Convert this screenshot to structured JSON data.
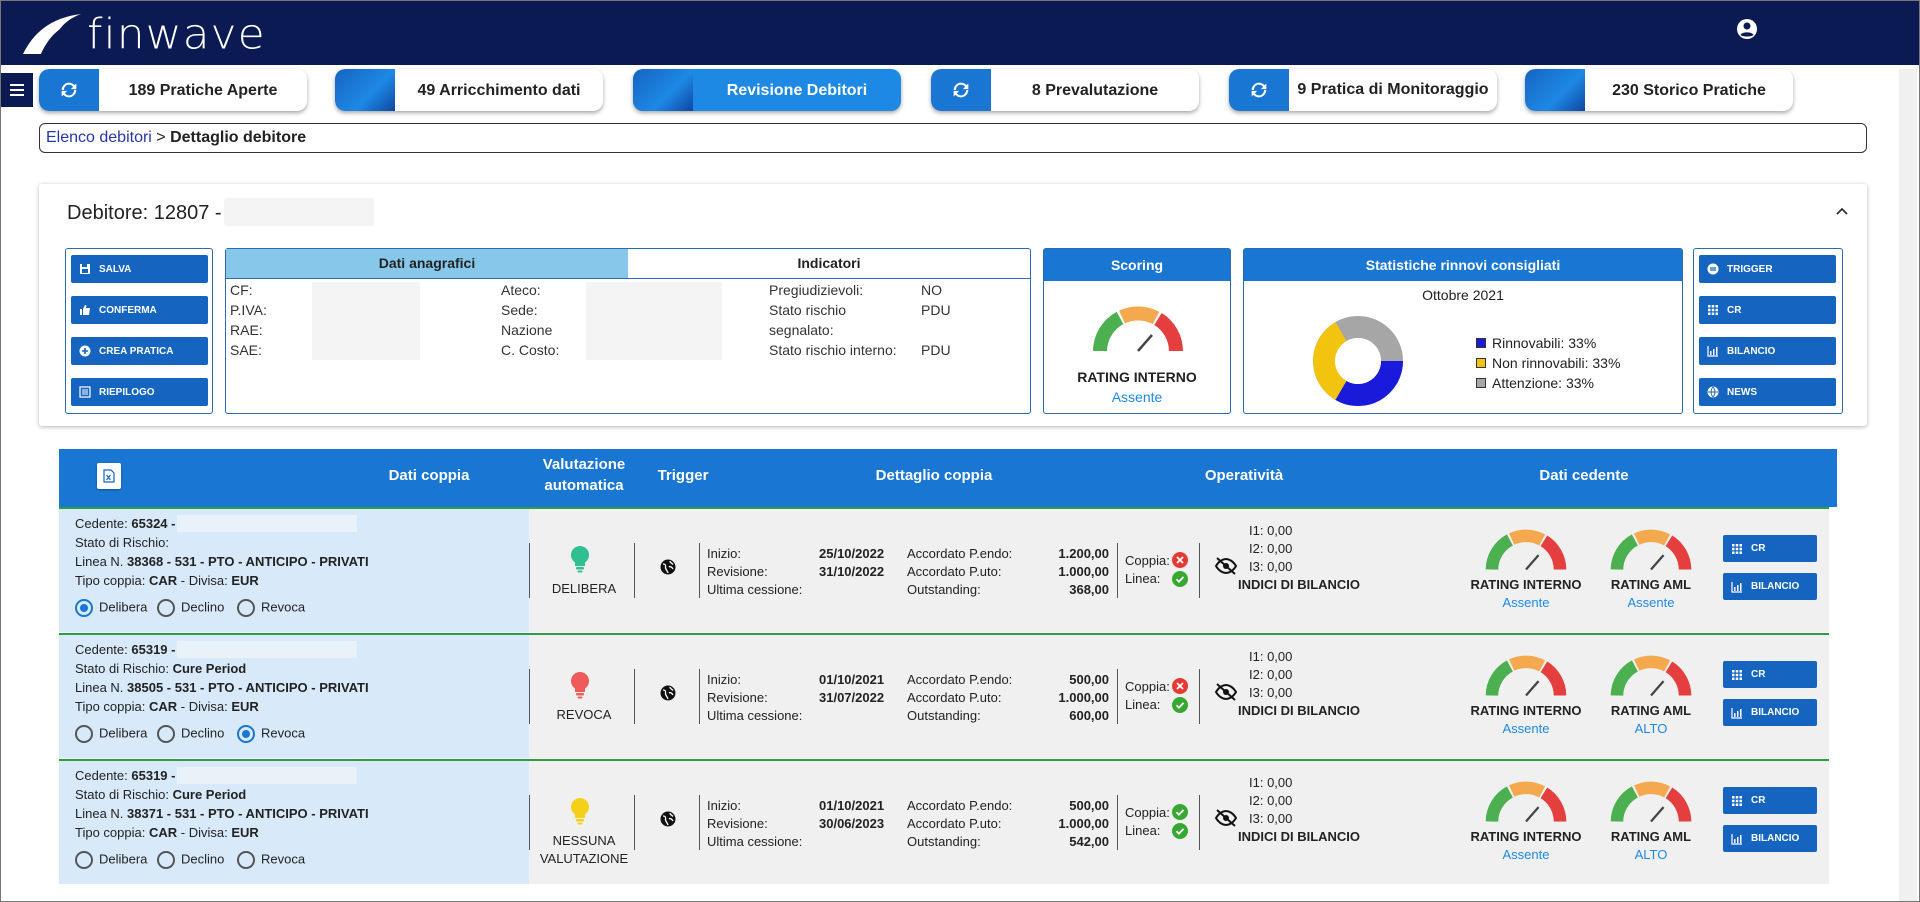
{
  "app": {
    "logo": "finwave"
  },
  "tabs": [
    {
      "label": "189 Pratiche Aperte",
      "icon": "refresh-icon"
    },
    {
      "label": "49 Arricchimento dati",
      "icon": "wave-icon"
    },
    {
      "label": "Revisione Debitori",
      "icon": "wave-icon"
    },
    {
      "label": "8 Prevalutazione",
      "icon": "refresh-icon"
    },
    {
      "label": "9 Pratica di Monitoraggio",
      "icon": "refresh-icon"
    },
    {
      "label": "230 Storico Pratiche",
      "icon": "wave-icon"
    }
  ],
  "breadcrumb": {
    "parent": "Elenco debitori",
    "sep": ">",
    "current": "Dettaglio debitore"
  },
  "debtor": {
    "title": "Debitore: 12807 -"
  },
  "actions": [
    "SALVA",
    "CONFERMA",
    "CREA PRATICA",
    "RIEPILOGO"
  ],
  "anag": {
    "tab1": "Dati anagrafici",
    "tab2": "Indicatori",
    "col1": [
      "CF:",
      "P.IVA:",
      "RAE:",
      "SAE:"
    ],
    "col2": [
      "Ateco:",
      "Sede:",
      "Nazione",
      "C. Costo:"
    ],
    "col3a": "Pregiudizievoli:",
    "col3a_v": "NO",
    "col3b": "Stato rischio",
    "col3b2": "segnalato:",
    "col3b_v": "PDU",
    "col3c": "Stato rischio interno:",
    "col3c_v": "PDU"
  },
  "scoring": {
    "title": "Scoring",
    "label": "RATING INTERNO",
    "value": "Assente"
  },
  "stats": {
    "title": "Statistiche rinnovi consigliati",
    "period": "Ottobre 2021",
    "legend": [
      {
        "label": "Rinnovabili: 33%",
        "color": "#1a1adb"
      },
      {
        "label": "Non rinnovabili: 33%",
        "color": "#f2c40f"
      },
      {
        "label": "Attenzione: 33%",
        "color": "#a6a6a6"
      }
    ]
  },
  "right_buttons": [
    "TRIGGER",
    "CR",
    "BILANCIO",
    "NEWS"
  ],
  "table": {
    "headers": [
      "Dati coppia",
      "Valutazione",
      "automatica",
      "Trigger",
      "Dettaglio coppia",
      "Operatività",
      "Dati cedente"
    ],
    "rows": [
      {
        "cedente_label": "Cedente:",
        "cedente": "65324 -",
        "stato_label": "Stato di Rischio:",
        "stato": "",
        "linea_label": "Linea N.",
        "linea": "38368 - 531 - PTO - ANTICIPO - PRIVATI",
        "tipo_label": "Tipo coppia:",
        "tipo": "CAR",
        "divisa_label": "- Divisa:",
        "divisa": "EUR",
        "radios": [
          "Delibera",
          "Declino",
          "Revoca"
        ],
        "selected": 0,
        "bulb_color": "#2fbf91",
        "valutazione": "DELIBERA",
        "valutazione2": "",
        "inizio_label": "Inizio:",
        "inizio": "25/10/2022",
        "revisione_label": "Revisione:",
        "revisione": "31/10/2022",
        "ultima_label": "Ultima cessione:",
        "ultima": "",
        "pendo_label": "Accordato P.endo:",
        "pendo": "1.200,00",
        "puto_label": "Accordato P.uto:",
        "puto": "1.000,00",
        "out_label": "Outstanding:",
        "out": "368,00",
        "coppia_label": "Coppia:",
        "coppia_ok": false,
        "linea_op_label": "Linea:",
        "linea_ok": true,
        "i1": "I1: 0,00",
        "i2": "I2: 0,00",
        "i3": "I3: 0,00",
        "indici": "INDICI DI BILANCIO",
        "ri_label": "RATING INTERNO",
        "ri_value": "Assente",
        "aml_label": "RATING AML",
        "aml_value": "Assente"
      },
      {
        "cedente_label": "Cedente:",
        "cedente": "65319 -",
        "stato_label": "Stato di Rischio:",
        "stato": "Cure Period",
        "linea_label": "Linea N.",
        "linea": "38505 - 531 - PTO - ANTICIPO - PRIVATI",
        "tipo_label": "Tipo coppia:",
        "tipo": "CAR",
        "divisa_label": "- Divisa:",
        "divisa": "EUR",
        "radios": [
          "Delibera",
          "Declino",
          "Revoca"
        ],
        "selected": 2,
        "bulb_color": "#ef5b5b",
        "valutazione": "REVOCA",
        "valutazione2": "",
        "inizio_label": "Inizio:",
        "inizio": "01/10/2021",
        "revisione_label": "Revisione:",
        "revisione": "31/07/2022",
        "ultima_label": "Ultima cessione:",
        "ultima": "",
        "pendo_label": "Accordato P.endo:",
        "pendo": "500,00",
        "puto_label": "Accordato P.uto:",
        "puto": "1.000,00",
        "out_label": "Outstanding:",
        "out": "600,00",
        "coppia_label": "Coppia:",
        "coppia_ok": false,
        "linea_op_label": "Linea:",
        "linea_ok": true,
        "i1": "I1: 0,00",
        "i2": "I2: 0,00",
        "i3": "I3: 0,00",
        "indici": "INDICI DI BILANCIO",
        "ri_label": "RATING INTERNO",
        "ri_value": "Assente",
        "aml_label": "RATING AML",
        "aml_value": "ALTO"
      },
      {
        "cedente_label": "Cedente:",
        "cedente": "65319 -",
        "stato_label": "Stato di Rischio:",
        "stato": "Cure Period",
        "linea_label": "Linea N.",
        "linea": "38371 - 531 - PTO - ANTICIPO - PRIVATI",
        "tipo_label": "Tipo coppia:",
        "tipo": "CAR",
        "divisa_label": "- Divisa:",
        "divisa": "EUR",
        "radios": [
          "Delibera",
          "Declino",
          "Revoca"
        ],
        "selected": -1,
        "bulb_color": "#f5d018",
        "valutazione": "NESSUNA",
        "valutazione2": "VALUTAZIONE",
        "inizio_label": "Inizio:",
        "inizio": "01/10/2021",
        "revisione_label": "Revisione:",
        "revisione": "30/06/2023",
        "ultima_label": "Ultima cessione:",
        "ultima": "",
        "pendo_label": "Accordato P.endo:",
        "pendo": "500,00",
        "puto_label": "Accordato P.uto:",
        "puto": "1.000,00",
        "out_label": "Outstanding:",
        "out": "542,00",
        "coppia_label": "Coppia:",
        "coppia_ok": true,
        "linea_op_label": "Linea:",
        "linea_ok": true,
        "i1": "I1: 0,00",
        "i2": "I2: 0,00",
        "i3": "I3: 0,00",
        "indici": "INDICI DI BILANCIO",
        "ri_label": "RATING INTERNO",
        "ri_value": "Assente",
        "aml_label": "RATING AML",
        "aml_value": "ALTO"
      }
    ],
    "row_buttons": [
      "CR",
      "BILANCIO"
    ]
  }
}
